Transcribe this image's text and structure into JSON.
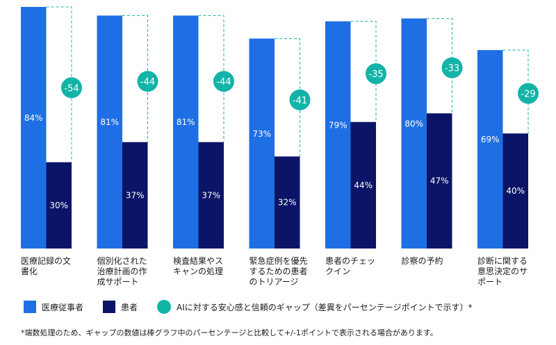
{
  "chart_data": {
    "type": "bar",
    "categories": [
      "医療記録の文\n書化",
      "個別化された\n治療計画の作\n成サポート",
      "検査結果やス\nキャンの処理",
      "緊急症例を優先\nするための患者\nのトリアージ",
      "患者のチェッ\nクイン",
      "診察の予約",
      "診断に関する\n意思決定のサ\nポート"
    ],
    "series": [
      {
        "name": "医療従事者",
        "color": "#1e6fe3",
        "values": [
          84,
          81,
          81,
          73,
          79,
          80,
          69
        ],
        "labels": [
          "84%",
          "81%",
          "81%",
          "73%",
          "79%",
          "80%",
          "69%"
        ]
      },
      {
        "name": "患者",
        "color": "#0b1466",
        "values": [
          30,
          37,
          37,
          32,
          44,
          47,
          40
        ],
        "labels": [
          "30%",
          "37%",
          "37%",
          "32%",
          "44%",
          "47%",
          "40%"
        ]
      }
    ],
    "gap": {
      "name": "AIに対する安心感と信頼のギャップ（差異をパーセンテージポイントで示す）*",
      "color": "#13b3a8",
      "values": [
        -54,
        -44,
        -44,
        -41,
        -35,
        -33,
        -29
      ],
      "labels": [
        "-54",
        "-44",
        "-44",
        "-41",
        "-35",
        "-33",
        "-29"
      ]
    },
    "ylim": [
      0,
      84
    ],
    "grid": false,
    "legend_position": "bottom-left"
  },
  "footnote": "*端数処理のため、ギャップの数値は棒グラフ中のパーセンテージと比較して+/-1ポイントで表示される場合があります。"
}
